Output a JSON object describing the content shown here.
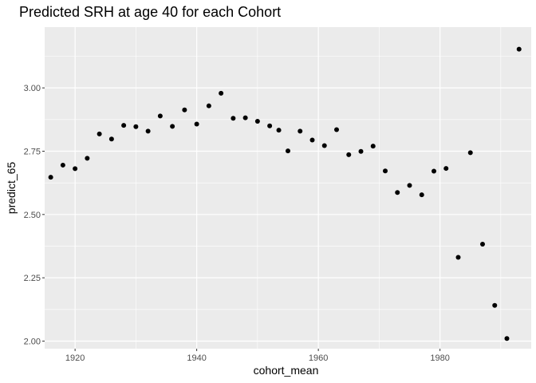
{
  "chart_data": {
    "type": "scatter",
    "title": "Predicted SRH at age 40 for each Cohort",
    "xlabel": "cohort_mean",
    "ylabel": "predict_65",
    "xlim": [
      1915,
      1995
    ],
    "ylim": [
      1.97,
      3.24
    ],
    "x_ticks": [
      1920,
      1940,
      1960,
      1980
    ],
    "y_ticks": [
      2.0,
      2.25,
      2.5,
      2.75,
      3.0
    ],
    "x_tick_labels": [
      "1920",
      "1940",
      "1960",
      "1980"
    ],
    "y_tick_labels": [
      "2.00",
      "2.25",
      "2.50",
      "2.75",
      "3.00"
    ],
    "grid": true,
    "legend": "none",
    "colors": {
      "panel_background": "#ebebeb",
      "grid_major": "#ffffff",
      "point": "#000000"
    },
    "points": [
      {
        "x": 1916,
        "y": 2.647
      },
      {
        "x": 1918,
        "y": 2.695
      },
      {
        "x": 1920,
        "y": 2.681
      },
      {
        "x": 1922,
        "y": 2.722
      },
      {
        "x": 1924,
        "y": 2.818
      },
      {
        "x": 1926,
        "y": 2.798
      },
      {
        "x": 1928,
        "y": 2.852
      },
      {
        "x": 1930,
        "y": 2.847
      },
      {
        "x": 1932,
        "y": 2.829
      },
      {
        "x": 1934,
        "y": 2.889
      },
      {
        "x": 1936,
        "y": 2.848
      },
      {
        "x": 1938,
        "y": 2.913
      },
      {
        "x": 1940,
        "y": 2.857
      },
      {
        "x": 1942,
        "y": 2.929
      },
      {
        "x": 1944,
        "y": 2.979
      },
      {
        "x": 1946,
        "y": 2.88
      },
      {
        "x": 1948,
        "y": 2.882
      },
      {
        "x": 1950,
        "y": 2.868
      },
      {
        "x": 1952,
        "y": 2.85
      },
      {
        "x": 1953.5,
        "y": 2.833
      },
      {
        "x": 1955,
        "y": 2.751
      },
      {
        "x": 1957,
        "y": 2.829
      },
      {
        "x": 1959,
        "y": 2.794
      },
      {
        "x": 1961,
        "y": 2.772
      },
      {
        "x": 1963,
        "y": 2.835
      },
      {
        "x": 1965,
        "y": 2.736
      },
      {
        "x": 1967,
        "y": 2.749
      },
      {
        "x": 1969,
        "y": 2.77
      },
      {
        "x": 1971,
        "y": 2.672
      },
      {
        "x": 1973,
        "y": 2.587
      },
      {
        "x": 1975,
        "y": 2.615
      },
      {
        "x": 1977,
        "y": 2.578
      },
      {
        "x": 1979,
        "y": 2.671
      },
      {
        "x": 1981,
        "y": 2.682
      },
      {
        "x": 1983,
        "y": 2.331
      },
      {
        "x": 1985,
        "y": 2.744
      },
      {
        "x": 1987,
        "y": 2.383
      },
      {
        "x": 1989,
        "y": 2.141
      },
      {
        "x": 1991,
        "y": 2.01
      },
      {
        "x": 1993,
        "y": 3.153
      }
    ]
  }
}
